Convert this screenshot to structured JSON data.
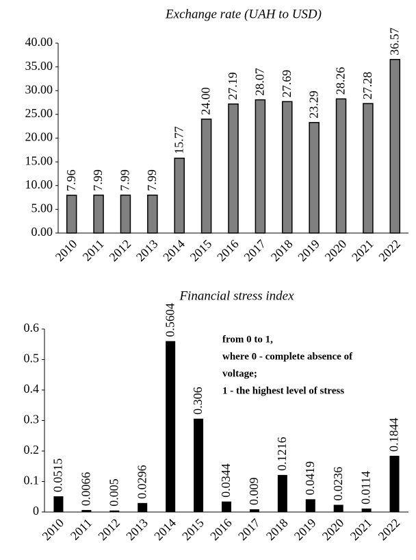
{
  "chart_data": [
    {
      "type": "bar",
      "title": "Exchange rate (UAH to USD)",
      "categories": [
        "2010",
        "2011",
        "2012",
        "2013",
        "2014",
        "2015",
        "2016",
        "2017",
        "2018",
        "2019",
        "2020",
        "2021",
        "2022"
      ],
      "values": [
        7.96,
        7.99,
        7.99,
        7.99,
        15.77,
        24.0,
        27.19,
        28.07,
        27.69,
        23.29,
        28.26,
        27.28,
        36.57
      ],
      "value_labels": [
        "7.96",
        "7.99",
        "7.99",
        "7.99",
        "15.77",
        "24.00",
        "27.19",
        "28.07",
        "27.69",
        "23.29",
        "28.26",
        "27.28",
        "36.57"
      ],
      "color": "#808080",
      "ylim": [
        0,
        40
      ],
      "yticks": [
        {
          "value": 0,
          "label": "0.00"
        },
        {
          "value": 5,
          "label": "5.00"
        },
        {
          "value": 10,
          "label": "10.00"
        },
        {
          "value": 15,
          "label": "15.00"
        },
        {
          "value": 20,
          "label": "20.00"
        },
        {
          "value": 25,
          "label": "25.00"
        },
        {
          "value": 30,
          "label": "30.00"
        },
        {
          "value": 35,
          "label": "35.00"
        },
        {
          "value": 40,
          "label": "40.00"
        }
      ],
      "grid": false
    },
    {
      "type": "bar",
      "title": "Financial stress index",
      "categories": [
        "2010",
        "2011",
        "2012",
        "2013",
        "2014",
        "2015",
        "2016",
        "2017",
        "2018",
        "2019",
        "2020",
        "2021",
        "2022"
      ],
      "values": [
        0.0515,
        0.0066,
        0.005,
        0.0296,
        0.5604,
        0.306,
        0.0344,
        0.009,
        0.1216,
        0.0419,
        0.0236,
        0.0114,
        0.1844
      ],
      "color": "#000000",
      "ylim": [
        0,
        0.6
      ],
      "yticks": [
        0,
        0.1,
        0.2,
        0.3,
        0.4,
        0.5,
        0.6
      ],
      "grid": false,
      "annotation": [
        "from 0 to 1,",
        "where 0 - complete absence of",
        "voltage;",
        "1 - the highest level of stress"
      ]
    }
  ]
}
